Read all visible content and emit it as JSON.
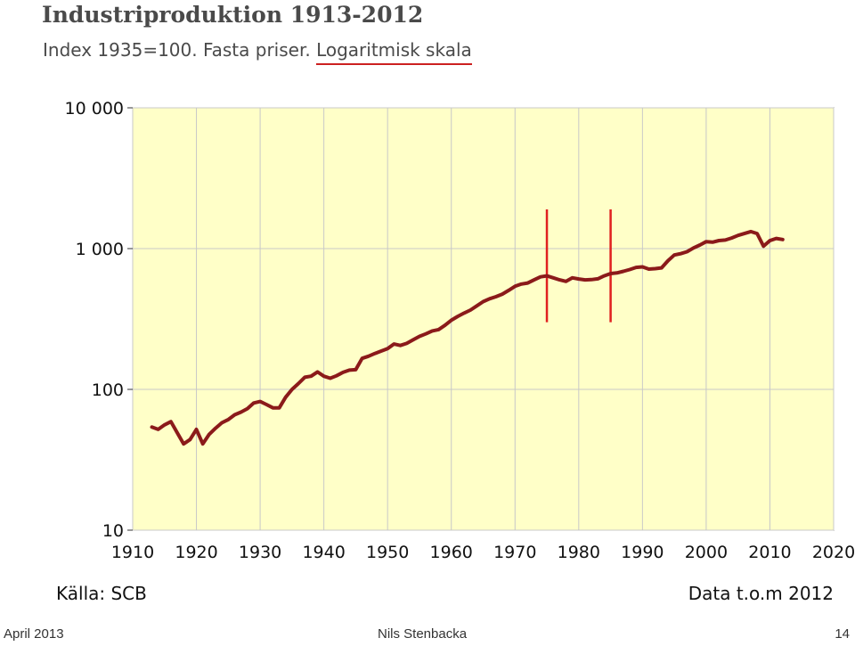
{
  "header": {
    "title": "Industriproduktion 1913-2012",
    "subtitle_prefix": "Index 1935=100. Fasta priser. ",
    "subtitle_highlight": "Logaritmisk skala"
  },
  "footer": {
    "source": "Källa: SCB",
    "data_period": "Data t.o.m 2012"
  },
  "slide_footer": {
    "date": "April 2013",
    "author": "Nils Stenbacka",
    "page_number": "14"
  },
  "colors": {
    "plot_background": "#ffffc8",
    "line": "#8b1a1a",
    "markers": "#e02020",
    "grid": "#c8c8c8"
  },
  "chart_data": {
    "type": "line",
    "title": "Industriproduktion 1913-2012",
    "subtitle": "Index 1935=100. Fasta priser. Logaritmisk skala",
    "xlabel": "",
    "ylabel": "",
    "yscale": "log",
    "xlim": [
      1910,
      2020
    ],
    "ylim": [
      10,
      10000
    ],
    "x_ticks": [
      1910,
      1920,
      1930,
      1940,
      1950,
      1960,
      1970,
      1980,
      1990,
      2000,
      2010,
      2020
    ],
    "y_ticks": [
      10,
      100,
      1000,
      10000
    ],
    "y_tick_labels": [
      "10",
      "100",
      "1 000",
      "10 000"
    ],
    "grid": true,
    "vertical_markers": [
      1975,
      1985
    ],
    "series": [
      {
        "x": [
          1913,
          1914,
          1915,
          1916,
          1917,
          1918,
          1919,
          1920,
          1921,
          1922,
          1923,
          1924,
          1925,
          1926,
          1927,
          1928,
          1929,
          1930,
          1931,
          1932,
          1933,
          1934,
          1935,
          1936,
          1937,
          1938,
          1939,
          1940,
          1941,
          1942,
          1943,
          1944,
          1945,
          1946,
          1947,
          1948,
          1949,
          1950,
          1951,
          1952,
          1953,
          1954,
          1955,
          1956,
          1957,
          1958,
          1959,
          1960,
          1961,
          1962,
          1963,
          1964,
          1965,
          1966,
          1967,
          1968,
          1969,
          1970,
          1971,
          1972,
          1973,
          1974,
          1975,
          1976,
          1977,
          1978,
          1979,
          1980,
          1981,
          1982,
          1983,
          1984,
          1985,
          1986,
          1987,
          1988,
          1989,
          1990,
          1991,
          1992,
          1993,
          1994,
          1995,
          1996,
          1997,
          1998,
          1999,
          2000,
          2001,
          2002,
          2003,
          2004,
          2005,
          2006,
          2007,
          2008,
          2009,
          2010,
          2011,
          2012
        ],
        "values": [
          54,
          52,
          56,
          59,
          49,
          41,
          44,
          52,
          41,
          48,
          53,
          58,
          61,
          66,
          69,
          73,
          80,
          82,
          78,
          74,
          74,
          88,
          100,
          110,
          122,
          124,
          133,
          124,
          120,
          125,
          132,
          137,
          138,
          166,
          172,
          180,
          187,
          195,
          210,
          205,
          212,
          225,
          238,
          248,
          260,
          266,
          285,
          310,
          330,
          348,
          366,
          392,
          420,
          440,
          455,
          475,
          505,
          540,
          560,
          570,
          600,
          630,
          640,
          620,
          600,
          585,
          620,
          608,
          600,
          602,
          610,
          640,
          665,
          672,
          690,
          710,
          735,
          742,
          715,
          720,
          730,
          820,
          900,
          920,
          950,
          1010,
          1060,
          1120,
          1110,
          1140,
          1150,
          1190,
          1240,
          1280,
          1320,
          1280,
          1040,
          1140,
          1180,
          1160
        ]
      }
    ]
  }
}
